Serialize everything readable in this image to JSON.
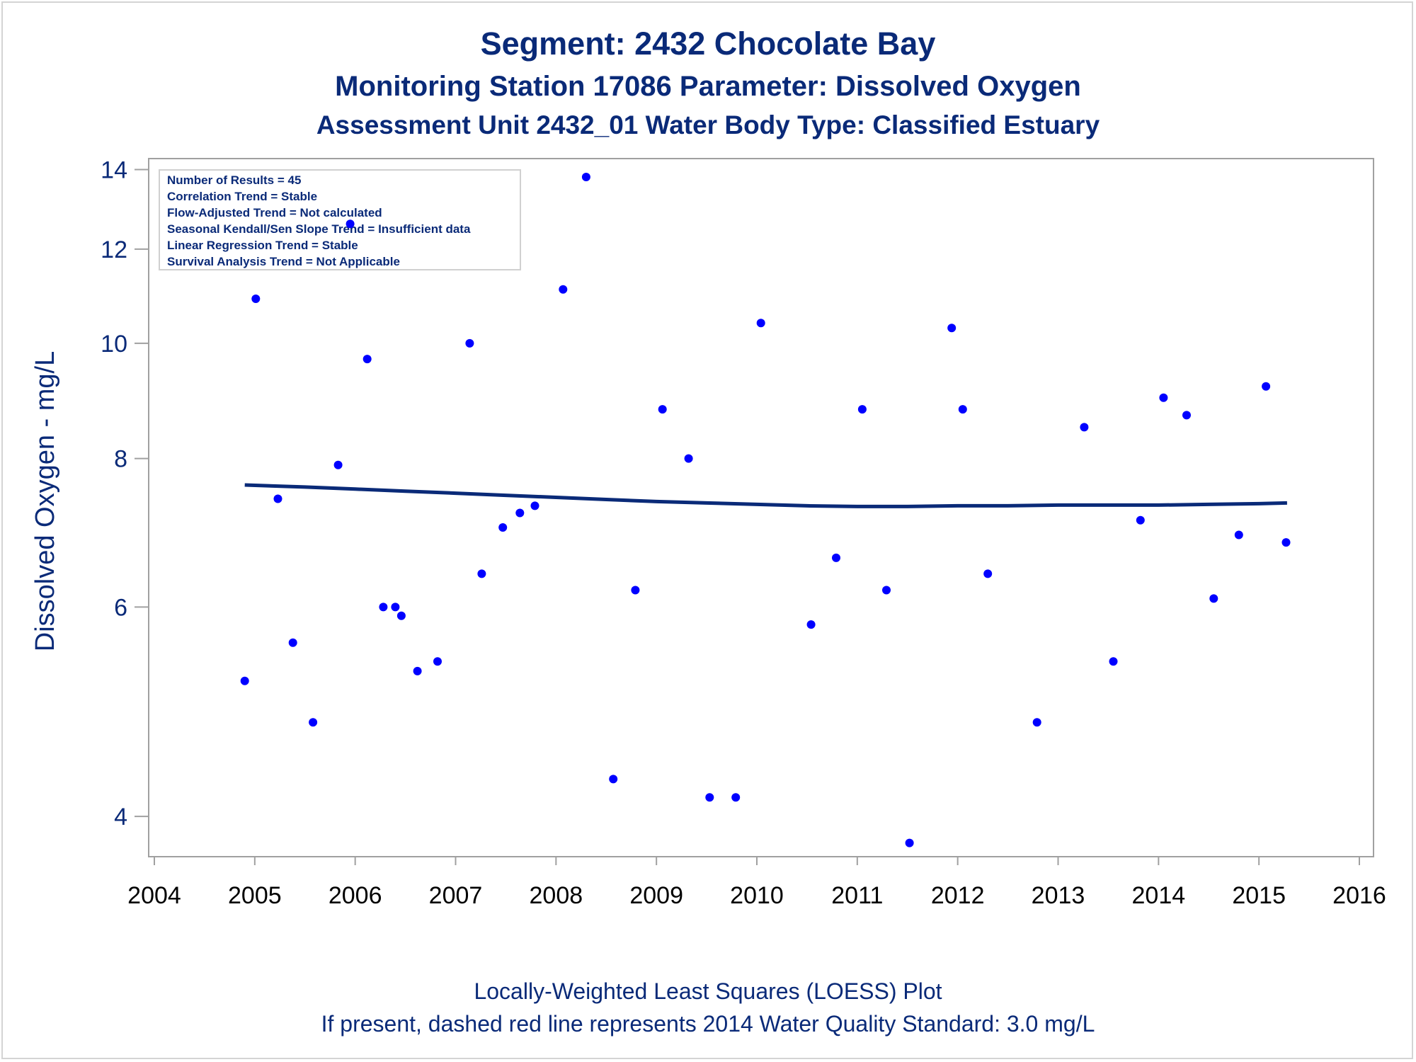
{
  "titles": {
    "line1": "Segment: 2432  Chocolate Bay",
    "line2": "Monitoring Station 17086 Parameter: Dissolved Oxygen",
    "line3": "Assessment Unit 2432_01   Water Body Type: Classified Estuary"
  },
  "footnotes": {
    "line1": "Locally-Weighted Least Squares (LOESS) Plot",
    "line2": "If present, dashed red line represents 2014 Water Quality Standard: 3.0 mg/L"
  },
  "stats_box": [
    "Number of Results = 45",
    "Correlation Trend = Stable",
    "Flow-Adjusted Trend = Not calculated",
    "Seasonal Kendall/Sen Slope Trend = Insufficient data",
    "Linear Regression Trend = Stable",
    "Survival Analysis Trend = Not Applicable"
  ],
  "colors": {
    "text": "#0a2a78",
    "points": "#0000ff",
    "loess_line": "#0a2a78",
    "axis": "#a0a0a0"
  },
  "chart_data": {
    "type": "scatter",
    "ylabel": "Dissolved Oxygen - mg/L",
    "xlabel": "",
    "y_scale": "log",
    "xlim": [
      2004.0,
      2016.0
    ],
    "ylim": [
      3.7,
      14.3
    ],
    "x_ticks": [
      2004,
      2005,
      2006,
      2007,
      2008,
      2009,
      2010,
      2011,
      2012,
      2013,
      2014,
      2015,
      2016
    ],
    "y_ticks": [
      4,
      6,
      8,
      10,
      12,
      14
    ],
    "grid": false,
    "series": [
      {
        "kind": "points",
        "x": [
          2004.9,
          2005.01,
          2005.23,
          2005.38,
          2005.58,
          2005.83,
          2005.95,
          2006.12,
          2006.28,
          2006.4,
          2006.46,
          2006.62,
          2006.82,
          2007.14,
          2007.26,
          2007.47,
          2007.64,
          2007.79,
          2008.07,
          2008.3,
          2008.57,
          2008.79,
          2009.06,
          2009.32,
          2009.53,
          2009.79,
          2010.04,
          2010.54,
          2010.79,
          2011.05,
          2011.29,
          2011.52,
          2011.94,
          2012.05,
          2012.3,
          2012.79,
          2013.26,
          2013.55,
          2013.82,
          2014.05,
          2014.28,
          2014.55,
          2014.8,
          2015.07,
          2015.27
        ],
        "y": [
          5.2,
          10.9,
          7.4,
          5.6,
          4.8,
          7.9,
          12.6,
          9.7,
          6.0,
          6.0,
          5.9,
          5.3,
          5.4,
          10.0,
          6.4,
          7.0,
          7.2,
          7.3,
          11.1,
          13.8,
          4.3,
          6.2,
          8.8,
          8.0,
          4.15,
          4.15,
          10.4,
          5.8,
          6.6,
          8.8,
          6.2,
          3.8,
          10.3,
          8.8,
          6.4,
          4.8,
          8.5,
          5.4,
          7.1,
          9.0,
          8.7,
          6.1,
          6.9,
          9.2,
          6.8
        ]
      },
      {
        "kind": "loess",
        "x": [
          2004.9,
          2005.5,
          2006.0,
          2006.5,
          2007.0,
          2007.5,
          2008.0,
          2008.5,
          2009.0,
          2009.5,
          2010.0,
          2010.5,
          2011.0,
          2011.5,
          2012.0,
          2012.5,
          2013.0,
          2013.5,
          2014.0,
          2014.5,
          2015.0,
          2015.28
        ],
        "y": [
          7.6,
          7.57,
          7.54,
          7.51,
          7.48,
          7.45,
          7.42,
          7.39,
          7.36,
          7.34,
          7.32,
          7.3,
          7.29,
          7.29,
          7.3,
          7.3,
          7.31,
          7.31,
          7.31,
          7.32,
          7.33,
          7.34
        ]
      }
    ]
  }
}
